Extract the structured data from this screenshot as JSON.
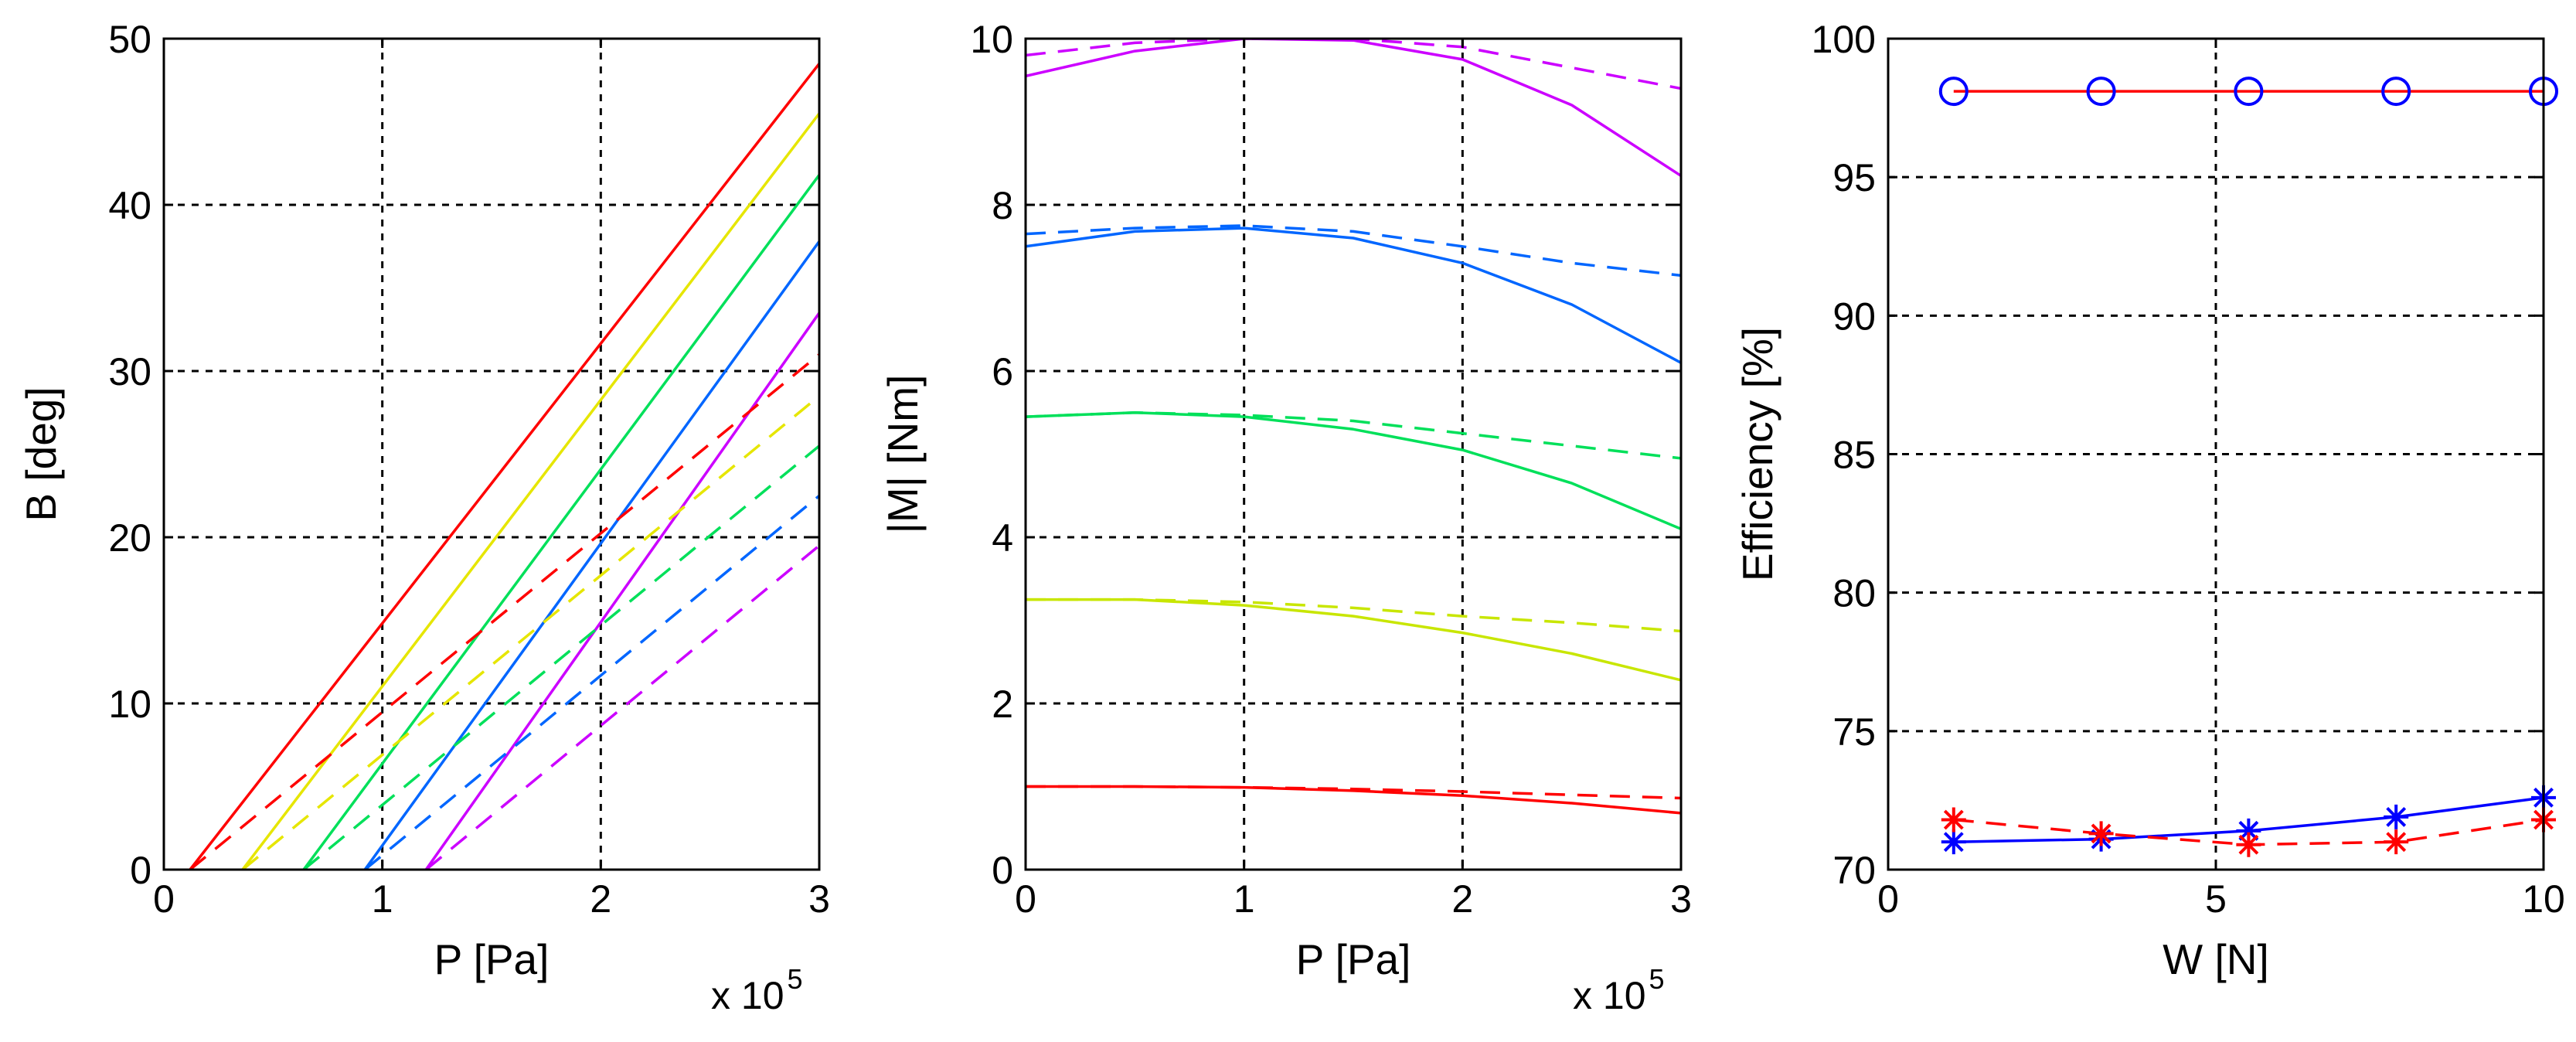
{
  "chart_data": [
    {
      "type": "line",
      "title": "",
      "xlabel": "P [Pa]",
      "ylabel": "B [deg]",
      "x_multiplier": {
        "base": "x 10",
        "exponent": "5"
      },
      "xlim": [
        0,
        3
      ],
      "ylim": [
        0,
        50
      ],
      "xticks": [
        0,
        1,
        2,
        3
      ],
      "yticks": [
        0,
        10,
        20,
        30,
        40,
        50
      ],
      "xtick_labels": [
        "0",
        "1",
        "2",
        "3"
      ],
      "ytick_labels": [
        "0",
        "10",
        "20",
        "30",
        "40",
        "50"
      ],
      "grid": true,
      "series": [
        {
          "name": "red solid",
          "color": "#ff0000",
          "style": "solid",
          "x": [
            0.12,
            3.0
          ],
          "y": [
            0,
            48.5
          ]
        },
        {
          "name": "yellow solid",
          "color": "#e6e600",
          "style": "solid",
          "x": [
            0.36,
            3.0
          ],
          "y": [
            0,
            45.5
          ]
        },
        {
          "name": "green solid",
          "color": "#00e05a",
          "style": "solid",
          "x": [
            0.64,
            3.0
          ],
          "y": [
            0,
            41.8
          ]
        },
        {
          "name": "blue solid",
          "color": "#0066ff",
          "style": "solid",
          "x": [
            0.92,
            3.0
          ],
          "y": [
            0,
            37.8
          ]
        },
        {
          "name": "magenta solid",
          "color": "#cc00ff",
          "style": "solid",
          "x": [
            1.2,
            3.0
          ],
          "y": [
            0,
            33.5
          ]
        },
        {
          "name": "red dashed",
          "color": "#ff0000",
          "style": "dashed",
          "x": [
            0.12,
            3.0
          ],
          "y": [
            0,
            31.0
          ]
        },
        {
          "name": "yellow dashed",
          "color": "#e6e600",
          "style": "dashed",
          "x": [
            0.36,
            3.0
          ],
          "y": [
            0,
            28.5
          ]
        },
        {
          "name": "green dashed",
          "color": "#00e05a",
          "style": "dashed",
          "x": [
            0.64,
            3.0
          ],
          "y": [
            0,
            25.5
          ]
        },
        {
          "name": "blue dashed",
          "color": "#0066ff",
          "style": "dashed",
          "x": [
            0.92,
            3.0
          ],
          "y": [
            0,
            22.5
          ]
        },
        {
          "name": "magenta dashed",
          "color": "#cc00ff",
          "style": "dashed",
          "x": [
            1.2,
            3.0
          ],
          "y": [
            0,
            19.5
          ]
        }
      ]
    },
    {
      "type": "line",
      "title": "",
      "xlabel": "P [Pa]",
      "ylabel": "|M| [Nm]",
      "x_multiplier": {
        "base": "x 10",
        "exponent": "5"
      },
      "xlim": [
        0,
        3
      ],
      "ylim": [
        0,
        10
      ],
      "xticks": [
        0,
        1,
        2,
        3
      ],
      "yticks": [
        0,
        2,
        4,
        6,
        8,
        10
      ],
      "xtick_labels": [
        "0",
        "1",
        "2",
        "3"
      ],
      "ytick_labels": [
        "0",
        "2",
        "4",
        "6",
        "8",
        "10"
      ],
      "grid": true,
      "series": [
        {
          "name": "red solid",
          "color": "#ff0000",
          "style": "solid",
          "x": [
            0,
            0.5,
            1,
            1.5,
            2,
            2.5,
            3
          ],
          "y": [
            1.0,
            1.0,
            0.99,
            0.95,
            0.89,
            0.8,
            0.68
          ]
        },
        {
          "name": "red dashed",
          "color": "#ff0000",
          "style": "dashed",
          "x": [
            0,
            0.5,
            1,
            1.5,
            2,
            2.5,
            3
          ],
          "y": [
            1.0,
            1.0,
            0.99,
            0.97,
            0.94,
            0.9,
            0.86
          ]
        },
        {
          "name": "yellow solid",
          "color": "#c8e600",
          "style": "solid",
          "x": [
            0,
            0.5,
            1,
            1.5,
            2,
            2.5,
            3
          ],
          "y": [
            3.25,
            3.25,
            3.18,
            3.05,
            2.85,
            2.6,
            2.28
          ]
        },
        {
          "name": "yellow dashed",
          "color": "#c8e600",
          "style": "dashed",
          "x": [
            0,
            0.5,
            1,
            1.5,
            2,
            2.5,
            3
          ],
          "y": [
            3.25,
            3.25,
            3.22,
            3.15,
            3.05,
            2.97,
            2.87
          ]
        },
        {
          "name": "green solid",
          "color": "#00e05a",
          "style": "solid",
          "x": [
            0,
            0.5,
            1,
            1.5,
            2,
            2.5,
            3
          ],
          "y": [
            5.45,
            5.5,
            5.45,
            5.3,
            5.05,
            4.65,
            4.1
          ]
        },
        {
          "name": "green dashed",
          "color": "#00e05a",
          "style": "dashed",
          "x": [
            0,
            0.5,
            1,
            1.5,
            2,
            2.5,
            3
          ],
          "y": [
            5.45,
            5.5,
            5.47,
            5.4,
            5.25,
            5.1,
            4.95
          ]
        },
        {
          "name": "blue solid",
          "color": "#0066ff",
          "style": "solid",
          "x": [
            0,
            0.5,
            1,
            1.5,
            2,
            2.5,
            3
          ],
          "y": [
            7.5,
            7.68,
            7.72,
            7.6,
            7.3,
            6.8,
            6.1
          ]
        },
        {
          "name": "blue dashed",
          "color": "#0066ff",
          "style": "dashed",
          "x": [
            0,
            0.5,
            1,
            1.5,
            2,
            2.5,
            3
          ],
          "y": [
            7.65,
            7.72,
            7.75,
            7.68,
            7.5,
            7.3,
            7.15
          ]
        },
        {
          "name": "magenta solid",
          "color": "#cc00ff",
          "style": "solid",
          "x": [
            0,
            0.5,
            1,
            1.5,
            2,
            2.5,
            3
          ],
          "y": [
            9.55,
            9.85,
            10.0,
            9.98,
            9.75,
            9.2,
            8.35
          ]
        },
        {
          "name": "magenta dashed",
          "color": "#cc00ff",
          "style": "dashed",
          "x": [
            0,
            0.5,
            1,
            1.5,
            2,
            2.5,
            3
          ],
          "y": [
            9.8,
            9.95,
            10.0,
            10.0,
            9.9,
            9.65,
            9.4
          ]
        }
      ]
    },
    {
      "type": "line",
      "title": "",
      "xlabel": "W [N]",
      "ylabel": "Efficiency [%]",
      "xlim": [
        0,
        10
      ],
      "ylim": [
        70,
        100
      ],
      "xticks": [
        0,
        5,
        10
      ],
      "yticks": [
        70,
        75,
        80,
        85,
        90,
        95,
        100
      ],
      "xtick_labels": [
        "0",
        "5",
        "10"
      ],
      "ytick_labels": [
        "70",
        "75",
        "80",
        "85",
        "90",
        "95",
        "100"
      ],
      "grid": true,
      "series": [
        {
          "name": "circle line",
          "color": "#ff0000",
          "marker_color": "#0000ff",
          "marker": "circle",
          "style": "solid",
          "x": [
            1,
            3.25,
            5.5,
            7.75,
            10
          ],
          "y": [
            98.1,
            98.1,
            98.1,
            98.1,
            98.1
          ]
        },
        {
          "name": "blue star solid",
          "color": "#0000ff",
          "marker_color": "#0000ff",
          "marker": "star",
          "style": "solid",
          "x": [
            1,
            3.25,
            5.5,
            7.75,
            10
          ],
          "y": [
            71.0,
            71.1,
            71.4,
            71.9,
            72.6
          ]
        },
        {
          "name": "red star dashed",
          "color": "#ff0000",
          "marker_color": "#ff0000",
          "marker": "star",
          "style": "dashed",
          "x": [
            1,
            3.25,
            5.5,
            7.75,
            10
          ],
          "y": [
            71.8,
            71.3,
            70.9,
            71.0,
            71.8
          ]
        }
      ]
    }
  ]
}
